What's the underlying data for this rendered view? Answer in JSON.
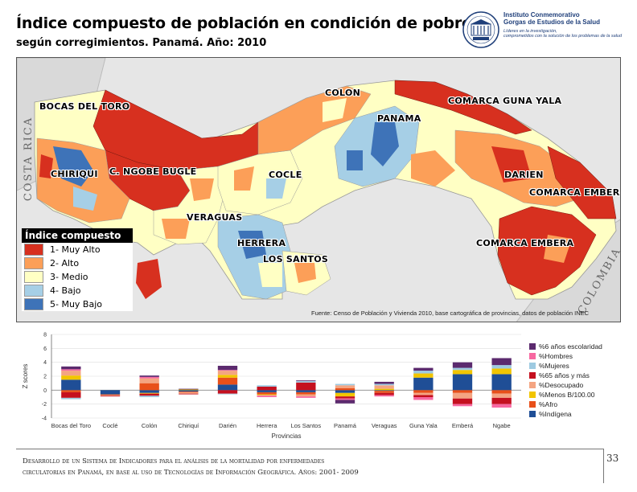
{
  "header": {
    "title": "Índice compuesto de población en condición de pobreza",
    "subtitle": "según corregimientos. Panamá. Año: 2010"
  },
  "logo": {
    "line1": "Instituto Conmemorativo",
    "line2": "Gorgas de Estudios de la Salud",
    "line3": "Líderes en la investigación,",
    "line4": "comprometidos con la solución de los problemas de la salud"
  },
  "map": {
    "labels": {
      "bocas": "BOCAS DEL TORO",
      "colon": "COLON",
      "panama": "PANAMA",
      "guna": "COMARCA GUNA YALA",
      "chiriqui": "CHIRIQUI",
      "ngobe": "C. NGOBE BUGLE",
      "cocle": "COCLE",
      "darien": "DARIEN",
      "embera1": "COMARCA EMBERA",
      "veraguas": "VERAGUAS",
      "herrera": "HERRERA",
      "lossantos": "LOS SANTOS",
      "embera2": "COMARCA EMBERA"
    },
    "countries": {
      "costarica": "COSTA RICA",
      "colombia": "COLOMBIA"
    },
    "legend": {
      "title": "Índice compuesto",
      "items": [
        {
          "label": "1- Muy Alto",
          "color": "#d7301f"
        },
        {
          "label": "2- Alto",
          "color": "#fc9f58"
        },
        {
          "label": "3- Medio",
          "color": "#ffffc4"
        },
        {
          "label": "4- Bajo",
          "color": "#a6cfe6"
        },
        {
          "label": "5- Muy Bajo",
          "color": "#3e73b8"
        }
      ]
    },
    "source": "Fuente: Censo de Población y Vivienda 2010, base cartográfica de provincias, datos de población INEC"
  },
  "chart_data": {
    "type": "bar",
    "stacked": true,
    "categories": [
      "Bocas del Toro",
      "Coclé",
      "Colón",
      "Chiriquí",
      "Darién",
      "Herrera",
      "Los Santos",
      "Panamá",
      "Veraguas",
      "Guna Yala",
      "Emberá",
      "Ngabe"
    ],
    "xlabel": "Provincias",
    "ylabel": "Z scores",
    "ylim": [
      -4,
      8
    ],
    "yticks": [
      -4,
      -2,
      0,
      2,
      4,
      6,
      8
    ],
    "legend_position": "right",
    "series": [
      {
        "name": "%Indígena",
        "color": "#1f4e96",
        "values": [
          1.5,
          -0.6,
          -0.4,
          -0.2,
          0.8,
          -0.3,
          -0.3,
          -0.4,
          -0.1,
          1.8,
          2.3,
          2.3
        ]
      },
      {
        "name": "%Afro",
        "color": "#e8501a",
        "values": [
          -0.3,
          -0.1,
          1.0,
          -0.1,
          1.0,
          -0.3,
          -0.3,
          0.3,
          -0.3,
          -0.4,
          -0.4,
          -0.5
        ]
      },
      {
        "name": "%Menos B/100.00",
        "color": "#f2c500",
        "values": [
          0.6,
          0.0,
          -0.1,
          0.1,
          0.4,
          -0.1,
          0.0,
          -0.5,
          0.2,
          0.6,
          0.6,
          0.8
        ]
      },
      {
        "name": "%Desocupado",
        "color": "#f4a582",
        "values": [
          0.7,
          -0.1,
          0.7,
          -0.2,
          0.6,
          -0.1,
          -0.3,
          0.4,
          0.5,
          -0.3,
          -0.8,
          -0.6
        ]
      },
      {
        "name": "%65 años y más",
        "color": "#c5101f",
        "values": [
          -0.8,
          -0.1,
          -0.3,
          -0.1,
          -0.5,
          0.5,
          1.1,
          -0.3,
          -0.3,
          -0.3,
          -0.8,
          -0.9
        ]
      },
      {
        "name": "%Mujeres",
        "color": "#9ecae1",
        "values": [
          -0.2,
          0.0,
          -0.2,
          0.0,
          -0.1,
          0.2,
          0.2,
          0.2,
          0.2,
          0.4,
          0.3,
          0.5
        ]
      },
      {
        "name": "%Hombres",
        "color": "#f768a1",
        "values": [
          0.2,
          0.0,
          0.2,
          0.0,
          0.1,
          -0.2,
          -0.2,
          -0.2,
          -0.2,
          -0.4,
          -0.3,
          -0.5
        ]
      },
      {
        "name": "%6 años escolaridad",
        "color": "#5b2a6e",
        "values": [
          0.4,
          0.0,
          0.2,
          0.1,
          0.6,
          0.0,
          0.1,
          -0.5,
          0.3,
          0.4,
          0.8,
          1.0
        ]
      }
    ]
  },
  "footer": {
    "line1": "Desarrollo de un Sistema de Indicadores para el análisis de la mortalidad por enfermedades",
    "line2": "circulatorias en Panamá, en base al uso de Tecnologías de Información Geográfica. Años: 2001- 2009",
    "page": "33"
  }
}
